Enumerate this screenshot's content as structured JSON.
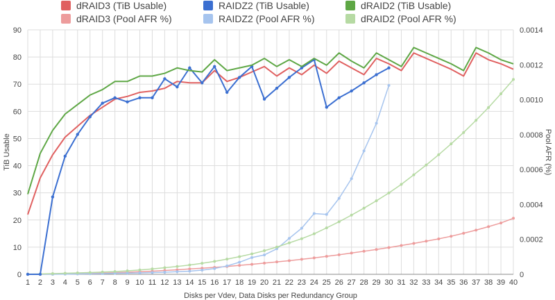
{
  "chart_data": {
    "type": "line",
    "xlabel": "Disks per Vdev, Data Disks per Redundancy Group",
    "ylabel": "TiB Usable",
    "y2label": "Pool AFR (%)",
    "x": [
      1,
      2,
      3,
      4,
      5,
      6,
      7,
      8,
      9,
      10,
      11,
      12,
      13,
      14,
      15,
      16,
      17,
      18,
      19,
      20,
      21,
      22,
      23,
      24,
      25,
      26,
      27,
      28,
      29,
      30,
      31,
      32,
      33,
      34,
      35,
      36,
      37,
      38,
      39,
      40
    ],
    "ylim": [
      0,
      90
    ],
    "y_ticks": [
      "0",
      "10",
      "20",
      "30",
      "40",
      "50",
      "60",
      "70",
      "80",
      "90"
    ],
    "y2lim": [
      0,
      0.0014
    ],
    "y2_ticks": [
      "0",
      "0.0002",
      "0.0004",
      "0.0006",
      "0.0008",
      "0.0010",
      "0.0012",
      "0.0014"
    ],
    "grid": true,
    "legend_position": "top",
    "series": [
      {
        "name": "dRAID3 (TiB Usable)",
        "axis": "left",
        "color": "#e06060",
        "marker": false,
        "values": [
          22,
          35.5,
          44,
          50.5,
          54.5,
          58.5,
          61.5,
          64.5,
          65.5,
          67,
          67.5,
          68.5,
          71,
          70.5,
          70.5,
          75,
          71,
          72.5,
          74.5,
          76.5,
          73,
          76,
          73.5,
          77,
          74,
          78.5,
          76,
          73.5,
          79.5,
          77.5,
          75,
          81.5,
          79.5,
          77.5,
          75.5,
          73,
          81.5,
          79,
          77.5,
          75.5
        ]
      },
      {
        "name": "RAIDZ2 (TiB Usable)",
        "axis": "left",
        "color": "#3b6fd1",
        "marker": true,
        "values": [
          0,
          0,
          28.5,
          43.5,
          51.5,
          58,
          63,
          65,
          63.5,
          65,
          65,
          72,
          69,
          76,
          70.5,
          76.5,
          67,
          72.5,
          76.5,
          64.5,
          68.5,
          72.5,
          76,
          79,
          61.5,
          65,
          67.5,
          70.5,
          73.5,
          76,
          null,
          null,
          null,
          null,
          null,
          null,
          null,
          null,
          null,
          null
        ]
      },
      {
        "name": "dRAID2 (TiB Usable)",
        "axis": "left",
        "color": "#5ea745",
        "marker": false,
        "values": [
          29.5,
          44.5,
          53,
          59,
          62.5,
          66,
          68,
          71,
          71,
          73,
          73,
          74,
          76,
          75,
          74.5,
          79,
          75,
          76,
          77,
          79.5,
          76.5,
          79,
          76.5,
          79.5,
          77,
          81.5,
          78.5,
          76,
          81.5,
          79,
          76.5,
          83.5,
          81.5,
          79.5,
          77.5,
          75,
          83.5,
          81.5,
          79,
          77.5
        ]
      },
      {
        "name": "dRAID3 (Pool AFR %)",
        "axis": "right",
        "color": "#ed9c9c",
        "marker": true,
        "values": [
          0,
          0,
          1e-06,
          2e-06,
          4e-06,
          5e-06,
          7e-06,
          9e-06,
          1.2e-05,
          1.5e-05,
          1.8e-05,
          2.2e-05,
          2.6e-05,
          3.1e-05,
          3.5e-05,
          4e-05,
          4.5e-05,
          5.1e-05,
          5.7e-05,
          6.4e-05,
          7.1e-05,
          7.8e-05,
          8.6e-05,
          9.4e-05,
          0.000103,
          0.000112,
          0.000122,
          0.000132,
          0.000142,
          0.000153,
          0.000165,
          0.000177,
          0.00019,
          0.000203,
          0.000218,
          0.000235,
          0.000253,
          0.000273,
          0.000294,
          0.000321
        ]
      },
      {
        "name": "RAIDZ2 (Pool AFR %)",
        "axis": "right",
        "color": "#a6c4ee",
        "marker": true,
        "values": [
          0,
          0,
          0,
          1e-06,
          2e-06,
          3e-06,
          4e-06,
          6e-06,
          7e-06,
          8e-06,
          1e-05,
          1.2e-05,
          1.5e-05,
          1.8e-05,
          2.4e-05,
          3.3e-05,
          4.8e-05,
          6.9e-05,
          9.6e-05,
          0.000111,
          0.000146,
          0.000206,
          0.000264,
          0.000348,
          0.000343,
          0.000435,
          0.000548,
          0.000707,
          0.000865,
          0.001082,
          null,
          null,
          null,
          null,
          null,
          null,
          null,
          null,
          null,
          null
        ]
      },
      {
        "name": "dRAID2 (Pool AFR %)",
        "axis": "right",
        "color": "#b6daa3",
        "marker": true,
        "values": [
          1e-06,
          2e-06,
          4e-06,
          6e-06,
          8e-06,
          1e-05,
          1.3e-05,
          1.6e-05,
          2e-05,
          2.5e-05,
          3.1e-05,
          3.8e-05,
          4.5e-05,
          5.3e-05,
          6.3e-05,
          7.4e-05,
          8.7e-05,
          0.000101,
          0.000117,
          0.000135,
          0.000156,
          0.00018,
          0.000204,
          0.000232,
          0.000266,
          0.000301,
          0.000339,
          0.000379,
          0.000421,
          0.000466,
          0.000515,
          0.00057,
          0.000626,
          0.000685,
          0.000747,
          0.000812,
          0.000882,
          0.000955,
          0.001034,
          0.001116
        ]
      }
    ]
  }
}
